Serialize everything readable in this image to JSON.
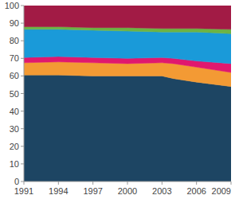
{
  "chart_data": {
    "type": "area",
    "stacked": true,
    "grid": false,
    "x": [
      1991,
      1994,
      1997,
      2000,
      2003,
      2004,
      2006,
      2009
    ],
    "xlim": [
      1991,
      2009
    ],
    "xticks": [
      1991,
      1994,
      1997,
      2000,
      2003,
      2006,
      2009
    ],
    "ylim": [
      0,
      100
    ],
    "yticks": [
      0,
      10,
      20,
      30,
      40,
      50,
      60,
      70,
      80,
      90,
      100
    ],
    "series": [
      {
        "color": "#1d4563",
        "values": [
          60.5,
          60.5,
          60,
          60,
          60,
          58.5,
          56.5,
          54
        ]
      },
      {
        "color": "#f39a34",
        "values": [
          7,
          7.5,
          7.5,
          7,
          7.5,
          8.5,
          8.5,
          8
        ]
      },
      {
        "color": "#e0186e",
        "values": [
          3,
          3,
          3,
          3,
          3,
          3,
          3.5,
          5
        ]
      },
      {
        "color": "#1a9ad9",
        "values": [
          16,
          15.5,
          15.5,
          15.5,
          14.5,
          15,
          16.5,
          17
        ]
      },
      {
        "color": "#6db344",
        "values": [
          1.5,
          1.5,
          1.5,
          2,
          2,
          2,
          2,
          2.5
        ]
      },
      {
        "color": "#a21b45",
        "values": [
          12,
          12,
          12.5,
          12.5,
          13,
          13,
          13,
          13.5
        ]
      }
    ]
  }
}
